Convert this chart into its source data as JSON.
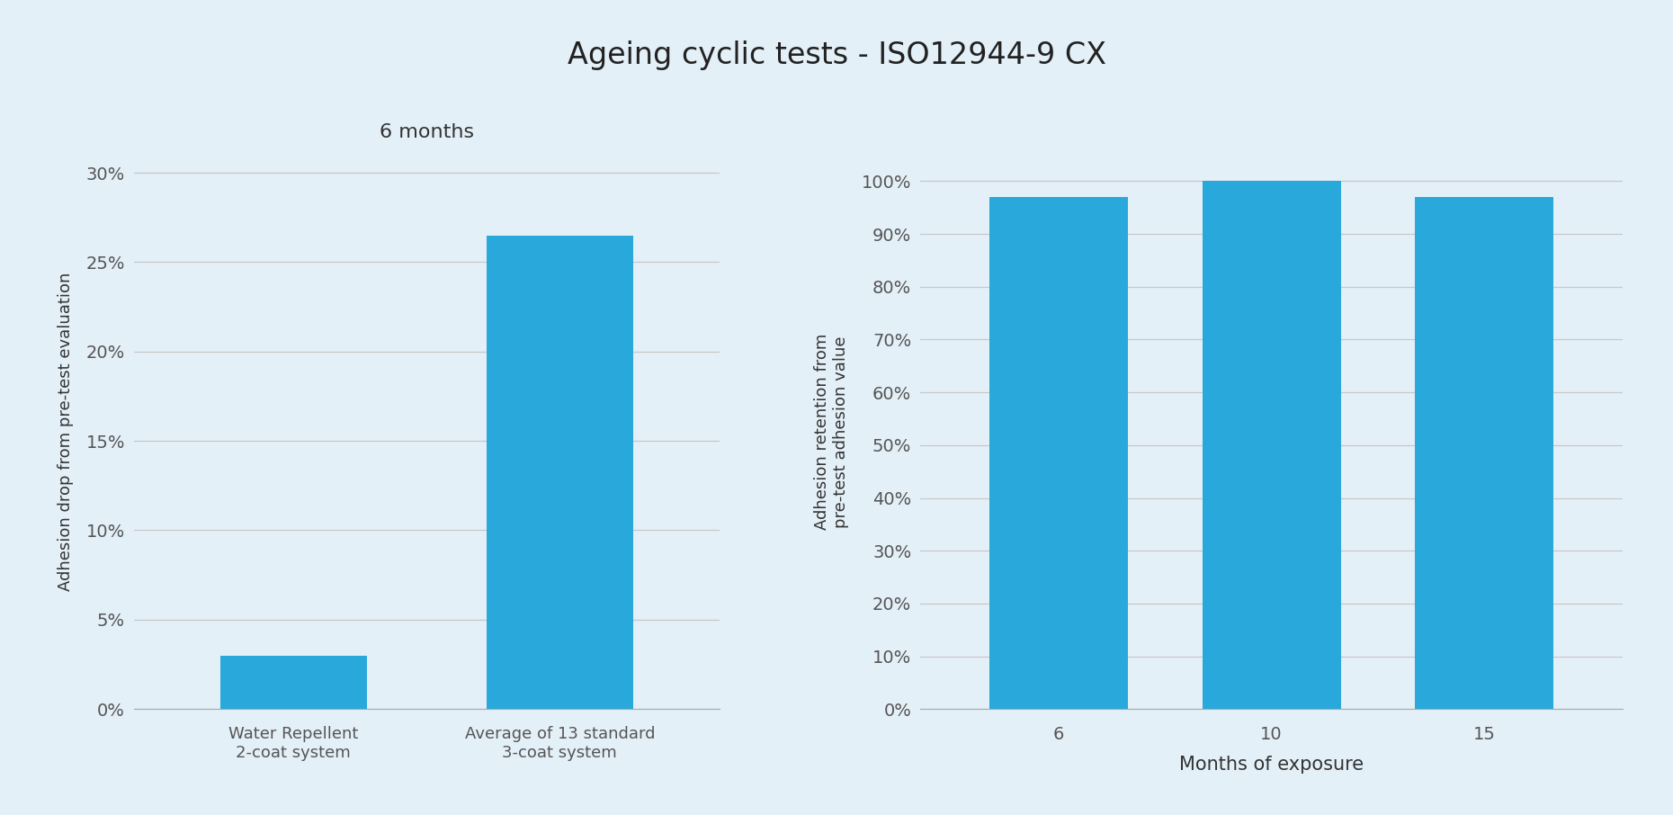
{
  "title": "Ageing cyclic tests - ISO12944-9 CX",
  "title_fontsize": 24,
  "background_color": "#e4f0f8",
  "bar_color": "#29A8DC",
  "left_chart": {
    "subtitle": "6 months",
    "subtitle_fontsize": 16,
    "categories": [
      "Water Repellent\n2-coat system",
      "Average of 13 standard\n3-coat system"
    ],
    "values": [
      3.0,
      26.5
    ],
    "ylabel": "Adhesion drop from pre-test evaluation",
    "ylabel_fontsize": 13,
    "yticks": [
      0,
      5,
      10,
      15,
      20,
      25,
      30
    ],
    "ytick_labels": [
      "0%",
      "5%",
      "10%",
      "15%",
      "20%",
      "25%",
      "30%"
    ],
    "ylim": [
      0,
      31
    ],
    "tick_fontsize": 14,
    "cat_fontsize": 13,
    "bar_width": 0.55
  },
  "right_chart": {
    "categories": [
      "6",
      "10",
      "15"
    ],
    "values": [
      97.0,
      100.0,
      97.0
    ],
    "xlabel": "Months of exposure",
    "xlabel_fontsize": 15,
    "ylabel": "Adhesion retention from\npre-test adhesion value",
    "ylabel_fontsize": 13,
    "yticks": [
      0,
      10,
      20,
      30,
      40,
      50,
      60,
      70,
      80,
      90,
      100
    ],
    "ytick_labels": [
      "0%",
      "10%",
      "20%",
      "30%",
      "40%",
      "50%",
      "60%",
      "70%",
      "80%",
      "90%",
      "100%"
    ],
    "ylim": [
      0,
      105
    ],
    "tick_fontsize": 14,
    "cat_fontsize": 14,
    "bar_width": 0.65
  }
}
